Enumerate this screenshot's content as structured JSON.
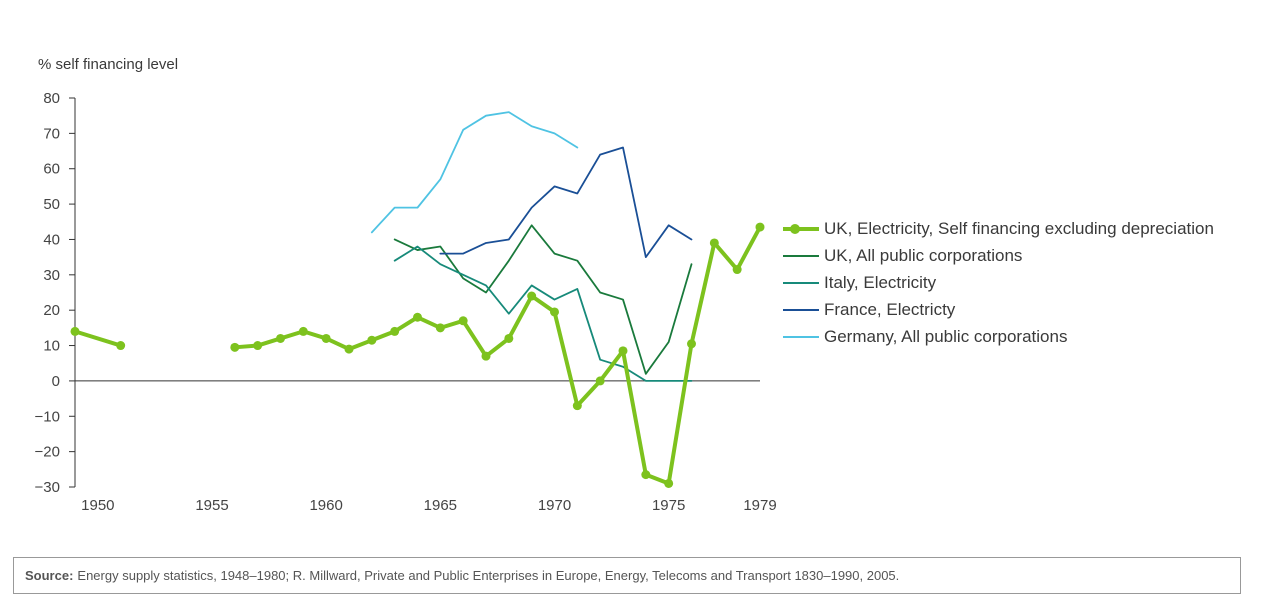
{
  "chart_data": {
    "type": "line",
    "title": "",
    "ylabel": "% self financing level",
    "xlabel": "",
    "ylim": [
      -30,
      80
    ],
    "yticks": [
      80,
      70,
      60,
      50,
      40,
      30,
      20,
      10,
      0,
      -10,
      -20,
      -30
    ],
    "xlim": [
      1949,
      1979
    ],
    "xticks": [
      1950,
      1955,
      1960,
      1965,
      1970,
      1975,
      1979
    ],
    "grid": false,
    "legend_position": "right",
    "series": [
      {
        "name": "UK, Electricity, Self financing excluding depreciation",
        "color": "#7dc21e",
        "style": "thick-with-markers",
        "points": [
          [
            1949,
            14
          ],
          [
            1951,
            10
          ],
          [
            null,
            null
          ],
          [
            1956,
            9.5
          ],
          [
            1957,
            10
          ],
          [
            1958,
            12
          ],
          [
            1959,
            14
          ],
          [
            1960,
            12
          ],
          [
            1961,
            9
          ],
          [
            1962,
            11.5
          ],
          [
            1963,
            14
          ],
          [
            1964,
            18
          ],
          [
            1965,
            15
          ],
          [
            1966,
            17
          ],
          [
            1967,
            7
          ],
          [
            1968,
            12
          ],
          [
            1969,
            24
          ],
          [
            1970,
            19.5
          ],
          [
            1971,
            -7
          ],
          [
            1972,
            0
          ],
          [
            1973,
            8.5
          ],
          [
            1974,
            -26.5
          ],
          [
            1975,
            -29
          ],
          [
            1976,
            10.5
          ],
          [
            1977,
            39
          ],
          [
            1978,
            31.5
          ],
          [
            1979,
            43.5
          ]
        ]
      },
      {
        "name": "UK, All public corporations",
        "color": "#1a7a3c",
        "style": "thin",
        "points": [
          [
            1963,
            40
          ],
          [
            1964,
            37
          ],
          [
            1965,
            38
          ],
          [
            1966,
            29
          ],
          [
            1967,
            25
          ],
          [
            1968,
            34
          ],
          [
            1969,
            44
          ],
          [
            1970,
            36
          ],
          [
            1971,
            34
          ],
          [
            1972,
            25
          ],
          [
            1973,
            23
          ],
          [
            1974,
            2
          ],
          [
            1975,
            11
          ],
          [
            1976,
            33
          ]
        ]
      },
      {
        "name": "Italy, Electricity",
        "color": "#178a7a",
        "style": "thin",
        "points": [
          [
            1963,
            34
          ],
          [
            1964,
            38
          ],
          [
            1965,
            33
          ],
          [
            1966,
            30
          ],
          [
            1967,
            27
          ],
          [
            1968,
            19
          ],
          [
            1969,
            27
          ],
          [
            1970,
            23
          ],
          [
            1971,
            26
          ],
          [
            1972,
            6
          ],
          [
            1973,
            4
          ],
          [
            1974,
            0
          ],
          [
            1975,
            0
          ],
          [
            1976,
            0
          ]
        ]
      },
      {
        "name": "France, Electricty",
        "color": "#1a4f96",
        "style": "thin",
        "points": [
          [
            1965,
            36
          ],
          [
            1966,
            36
          ],
          [
            1967,
            39
          ],
          [
            1968,
            40
          ],
          [
            1969,
            49
          ],
          [
            1970,
            55
          ],
          [
            1971,
            53
          ],
          [
            1972,
            64
          ],
          [
            1973,
            66
          ],
          [
            1974,
            35
          ],
          [
            1975,
            44
          ],
          [
            1976,
            40
          ]
        ]
      },
      {
        "name": "Germany, All public corporations",
        "color": "#4fc3e3",
        "style": "thin",
        "points": [
          [
            1962,
            42
          ],
          [
            1963,
            49
          ],
          [
            1964,
            49
          ],
          [
            1965,
            57
          ],
          [
            1966,
            71
          ],
          [
            1967,
            75
          ],
          [
            1968,
            76
          ],
          [
            1969,
            72
          ],
          [
            1970,
            70
          ],
          [
            1971,
            66
          ]
        ]
      }
    ]
  },
  "source": {
    "label": "Source:",
    "text": "Energy supply statistics, 1948–1980; R. Millward, Private and Public Enterprises in Europe, Energy, Telecoms and Transport 1830–1990, 2005."
  }
}
